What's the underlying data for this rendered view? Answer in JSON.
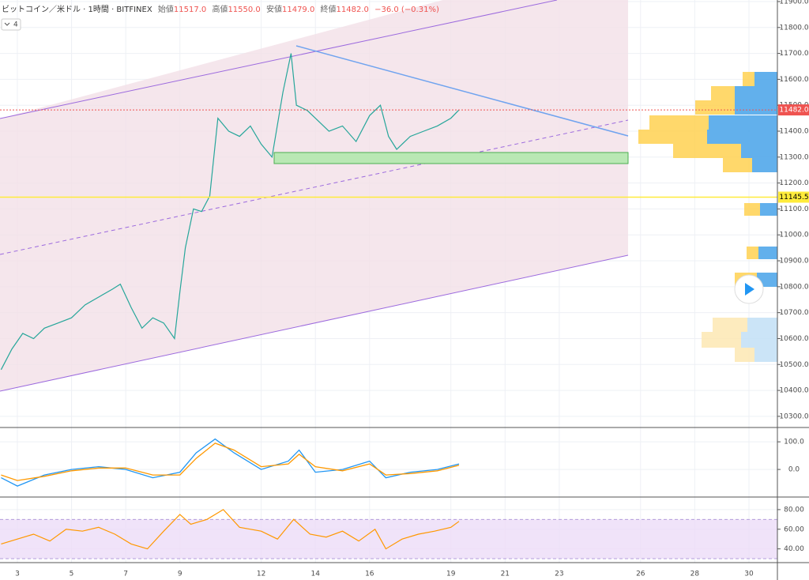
{
  "header": {
    "symbol": "ビットコイン／米ドル · 1時間 · BITFINEX",
    "open_label": "始値",
    "open": "11517.0",
    "high_label": "高値",
    "high": "11550.0",
    "low_label": "安値",
    "low": "11479.0",
    "close_label": "終値",
    "close": "11482.0",
    "change": "−36.0 (−0.31%)",
    "interval_button": "4"
  },
  "chart_data": [
    {
      "type": "line",
      "color": "#26a69a",
      "x": [
        2.4,
        2.8,
        3.2,
        3.6,
        4.0,
        4.5,
        5.0,
        5.5,
        6.0,
        6.5,
        6.8,
        7.2,
        7.6,
        8.0,
        8.4,
        8.8,
        9.0,
        9.2,
        9.5,
        9.8,
        10.1,
        10.4,
        10.8,
        11.2,
        11.6,
        12.0,
        12.4,
        12.8,
        13.1,
        13.3,
        13.7,
        14.0,
        14.5,
        15.0,
        15.5,
        16.0,
        16.4,
        16.7,
        17.0,
        17.5,
        18.0,
        18.5,
        19.0,
        19.3
      ],
      "values": [
        10480,
        10560,
        10620,
        10600,
        10640,
        10660,
        10680,
        10730,
        10760,
        10790,
        10810,
        10720,
        10640,
        10680,
        10660,
        10600,
        10780,
        10950,
        11100,
        11090,
        11150,
        11450,
        11400,
        11380,
        11420,
        11350,
        11300,
        11550,
        11700,
        11500,
        11480,
        11450,
        11400,
        11420,
        11360,
        11460,
        11500,
        11380,
        11330,
        11380,
        11400,
        11420,
        11450,
        11482
      ],
      "xlim": [
        2.36,
        31.05
      ],
      "xticks": [
        3,
        5,
        7,
        9,
        12,
        14,
        16,
        19,
        21,
        23,
        26,
        28,
        30
      ],
      "ylim": [
        10260,
        11906
      ],
      "yticks": [
        {
          "value": 10300,
          "label": "10300.0"
        },
        {
          "value": 10400,
          "label": "10400.0"
        },
        {
          "value": 10500,
          "label": "10500.0"
        },
        {
          "value": 10600,
          "label": "10600.0"
        },
        {
          "value": 10700,
          "label": "10700.0"
        },
        {
          "value": 10800,
          "label": "10800.0"
        },
        {
          "value": 10900,
          "label": "10900.0"
        },
        {
          "value": 11000,
          "label": "11000.0"
        },
        {
          "value": 11100,
          "label": "11100.0"
        },
        {
          "value": 11200,
          "label": "11200.0"
        },
        {
          "value": 11300,
          "label": "11300.0"
        },
        {
          "value": 11400,
          "label": "11400.0"
        },
        {
          "value": 11500,
          "label": "11500.0"
        },
        {
          "value": 11600,
          "label": "11600.0"
        },
        {
          "value": 11700,
          "label": "11700.0"
        },
        {
          "value": 11800,
          "label": "11800.0"
        },
        {
          "value": 11900,
          "label": "11900.0"
        }
      ],
      "markers": [
        {
          "value": 11482,
          "label": "11482.0",
          "color": "#ef5350"
        },
        {
          "value": 11145.5,
          "label": "11145.5",
          "color": "#ffeb3b"
        }
      ]
    },
    {
      "type": "line",
      "ylim": [
        -97,
        149
      ],
      "yticks": [
        {
          "value": 0,
          "label": "0.0"
        },
        {
          "value": 100,
          "label": "100.0"
        }
      ],
      "x": [
        2.4,
        3.0,
        4.0,
        5.0,
        6.0,
        7.0,
        8.0,
        9.0,
        9.6,
        10.3,
        11.0,
        12.0,
        13.0,
        13.4,
        14.0,
        15.0,
        16.0,
        16.6,
        17.5,
        18.5,
        19.3
      ],
      "series": [
        {
          "color": "#2196f3",
          "values": [
            -30,
            -60,
            -20,
            0,
            10,
            0,
            -30,
            -10,
            60,
            110,
            60,
            0,
            30,
            70,
            -10,
            0,
            30,
            -30,
            -10,
            0,
            20
          ]
        },
        {
          "color": "#ff9800",
          "values": [
            -20,
            -40,
            -25,
            -5,
            5,
            5,
            -20,
            -20,
            40,
            95,
            70,
            10,
            20,
            55,
            10,
            -5,
            20,
            -20,
            -15,
            -5,
            15
          ]
        }
      ]
    },
    {
      "type": "line",
      "color": "#ff9800",
      "band": [
        30,
        70
      ],
      "ylim": [
        26,
        92
      ],
      "yticks": [
        {
          "value": 40,
          "label": "40.00"
        },
        {
          "value": 60,
          "label": "60.00"
        },
        {
          "value": 80,
          "label": "80.00"
        }
      ],
      "x": [
        2.4,
        3.0,
        3.6,
        4.2,
        4.8,
        5.4,
        6.0,
        6.6,
        7.2,
        7.8,
        8.4,
        9.0,
        9.4,
        10.0,
        10.6,
        11.2,
        12.0,
        12.6,
        13.2,
        13.8,
        14.4,
        15.0,
        15.6,
        16.2,
        16.6,
        17.2,
        17.8,
        18.4,
        19.0,
        19.3
      ],
      "values": [
        45,
        50,
        55,
        48,
        60,
        58,
        62,
        55,
        45,
        40,
        58,
        75,
        65,
        70,
        80,
        62,
        58,
        50,
        70,
        55,
        52,
        58,
        48,
        60,
        40,
        50,
        55,
        58,
        62,
        68
      ]
    }
  ]
}
